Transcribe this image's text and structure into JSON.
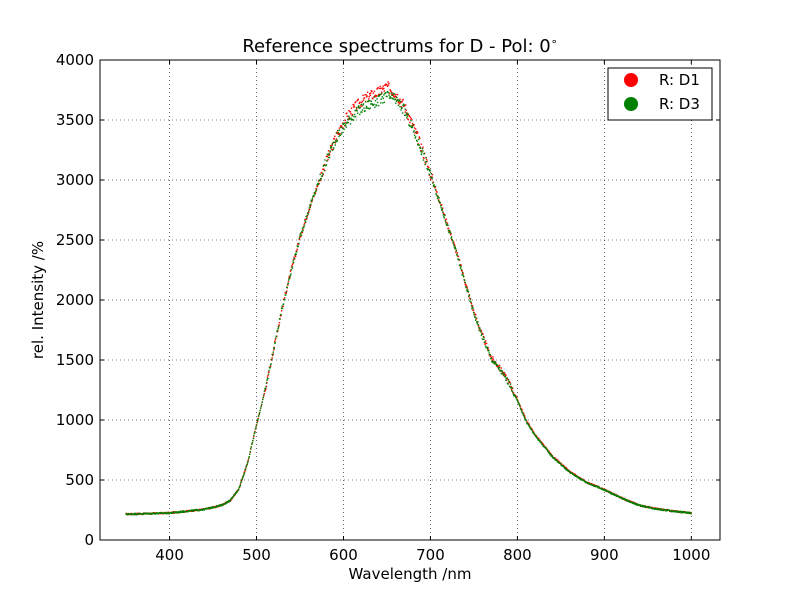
{
  "chart_data": {
    "type": "scatter",
    "title": "Reference spectrums for D - Pol: 0",
    "title_superscript": "∘",
    "xlabel": "Wavelength  /nm",
    "ylabel": "rel. Intensity  /%",
    "xlim": [
      320,
      1033
    ],
    "ylim": [
      0,
      4000
    ],
    "xticks": [
      400,
      500,
      600,
      700,
      800,
      900,
      1000
    ],
    "xtick_labels": [
      "400",
      "500",
      "600",
      "700",
      "800",
      "900",
      "1000"
    ],
    "yticks": [
      0,
      500,
      1000,
      1500,
      2000,
      2500,
      3000,
      3500,
      4000
    ],
    "ytick_labels": [
      "0",
      "500",
      "1000",
      "1500",
      "2000",
      "2500",
      "3000",
      "3500",
      "4000"
    ],
    "grid": true,
    "legend_position": "top-right",
    "x_range": [
      350,
      1000
    ],
    "series": [
      {
        "name": "R: D1",
        "color": "#ff0000",
        "anchors_x": [
          350,
          400,
          440,
          460,
          470,
          480,
          490,
          500,
          510,
          520,
          530,
          540,
          550,
          560,
          570,
          580,
          590,
          600,
          610,
          620,
          630,
          640,
          650,
          660,
          670,
          680,
          690,
          700,
          710,
          720,
          730,
          740,
          750,
          760,
          770,
          780,
          790,
          800,
          810,
          820,
          840,
          860,
          880,
          900,
          920,
          940,
          960,
          980,
          1000
        ],
        "anchors_y": [
          215,
          225,
          255,
          290,
          330,
          430,
          650,
          960,
          1250,
          1600,
          1950,
          2250,
          2520,
          2750,
          2950,
          3150,
          3330,
          3480,
          3580,
          3650,
          3700,
          3730,
          3780,
          3720,
          3620,
          3450,
          3270,
          3050,
          2840,
          2620,
          2400,
          2150,
          1900,
          1700,
          1520,
          1430,
          1320,
          1170,
          1000,
          880,
          700,
          570,
          480,
          420,
          350,
          290,
          260,
          240,
          225
        ]
      },
      {
        "name": "R: D3",
        "color": "#008000",
        "anchors_x": [
          350,
          400,
          440,
          460,
          470,
          480,
          490,
          500,
          510,
          520,
          530,
          540,
          550,
          560,
          570,
          580,
          590,
          600,
          610,
          620,
          630,
          640,
          650,
          660,
          670,
          680,
          690,
          700,
          710,
          720,
          730,
          740,
          750,
          760,
          770,
          780,
          790,
          800,
          810,
          820,
          840,
          860,
          880,
          900,
          920,
          940,
          960,
          980,
          1000
        ],
        "anchors_y": [
          215,
          225,
          255,
          290,
          330,
          430,
          650,
          960,
          1250,
          1600,
          1950,
          2250,
          2520,
          2750,
          2950,
          3150,
          3330,
          3440,
          3530,
          3590,
          3630,
          3660,
          3700,
          3670,
          3580,
          3420,
          3250,
          3040,
          2830,
          2610,
          2390,
          2140,
          1890,
          1690,
          1510,
          1420,
          1310,
          1160,
          990,
          875,
          695,
          565,
          478,
          418,
          348,
          289,
          259,
          239,
          224
        ]
      }
    ]
  }
}
